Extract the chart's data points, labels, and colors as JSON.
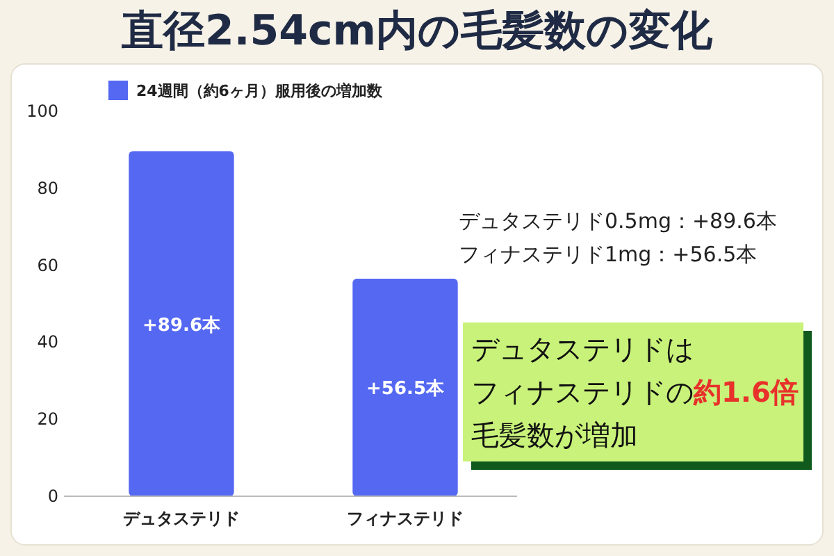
{
  "chart_data": {
    "type": "bar",
    "title": "直径2.54cm内の毛髪数の変化",
    "categories": [
      "デュタステリド",
      "フィナステリド"
    ],
    "series": [
      {
        "name": "24週間（約6ヶ月）服用後の増加数",
        "color": "#5468f2",
        "values": [
          89.6,
          56.5
        ],
        "value_labels": [
          "+89.6本",
          "+56.5本"
        ]
      }
    ],
    "ylim": [
      0,
      100
    ],
    "yticks": [
      0,
      20,
      40,
      60,
      80,
      100
    ],
    "grid": false,
    "legend": "top",
    "annotations": [
      "デュタステリド0.5mg：+89.6本",
      "フィナステリド1mg：+56.5本",
      "デュタステリドは",
      "フィナステリドの",
      "約1.6倍",
      "毛髪数が増加"
    ]
  }
}
